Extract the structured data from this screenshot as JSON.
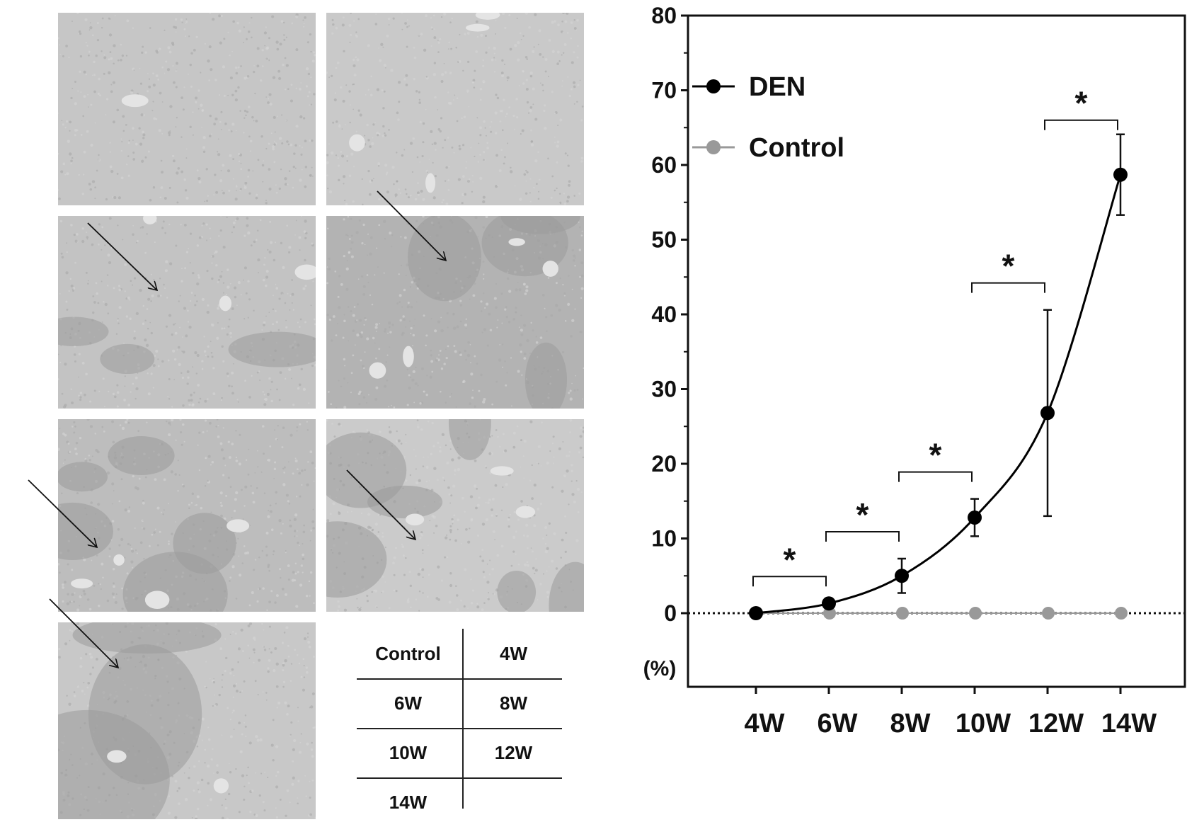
{
  "figure_labels": {
    "table": {
      "rows": [
        [
          "Control",
          "4W"
        ],
        [
          "6W",
          "8W"
        ],
        [
          "10W",
          "12W"
        ],
        [
          "14W",
          ""
        ]
      ]
    }
  },
  "colors": {
    "den": "#000000",
    "control": "#999999",
    "tissue": "#c4c4c4"
  },
  "chart_data": {
    "type": "line",
    "categories": [
      "4W",
      "6W",
      "8W",
      "10W",
      "12W",
      "14W"
    ],
    "ylim": [
      0,
      80
    ],
    "yticks": [
      0,
      10,
      20,
      30,
      40,
      50,
      60,
      70,
      80
    ],
    "ylabel": "(%)",
    "xlabel": "",
    "title": "",
    "legend_position": "top-left",
    "series": [
      {
        "name": "DEN",
        "color": "#000000",
        "values": [
          0,
          1.3,
          5.0,
          12.8,
          26.8,
          58.7
        ],
        "error": [
          0,
          0,
          2.3,
          2.5,
          13.8,
          5.4
        ]
      },
      {
        "name": "Control",
        "color": "#999999",
        "values": [
          0,
          0,
          0,
          0,
          0,
          0
        ]
      }
    ],
    "significance": [
      {
        "from": "4W",
        "to": "6W",
        "label": "*"
      },
      {
        "from": "6W",
        "to": "8W",
        "label": "*"
      },
      {
        "from": "8W",
        "to": "10W",
        "label": "*"
      },
      {
        "from": "10W",
        "to": "12W",
        "label": "*"
      },
      {
        "from": "12W",
        "to": "14W",
        "label": "*"
      }
    ],
    "zero_line": "dotted"
  }
}
